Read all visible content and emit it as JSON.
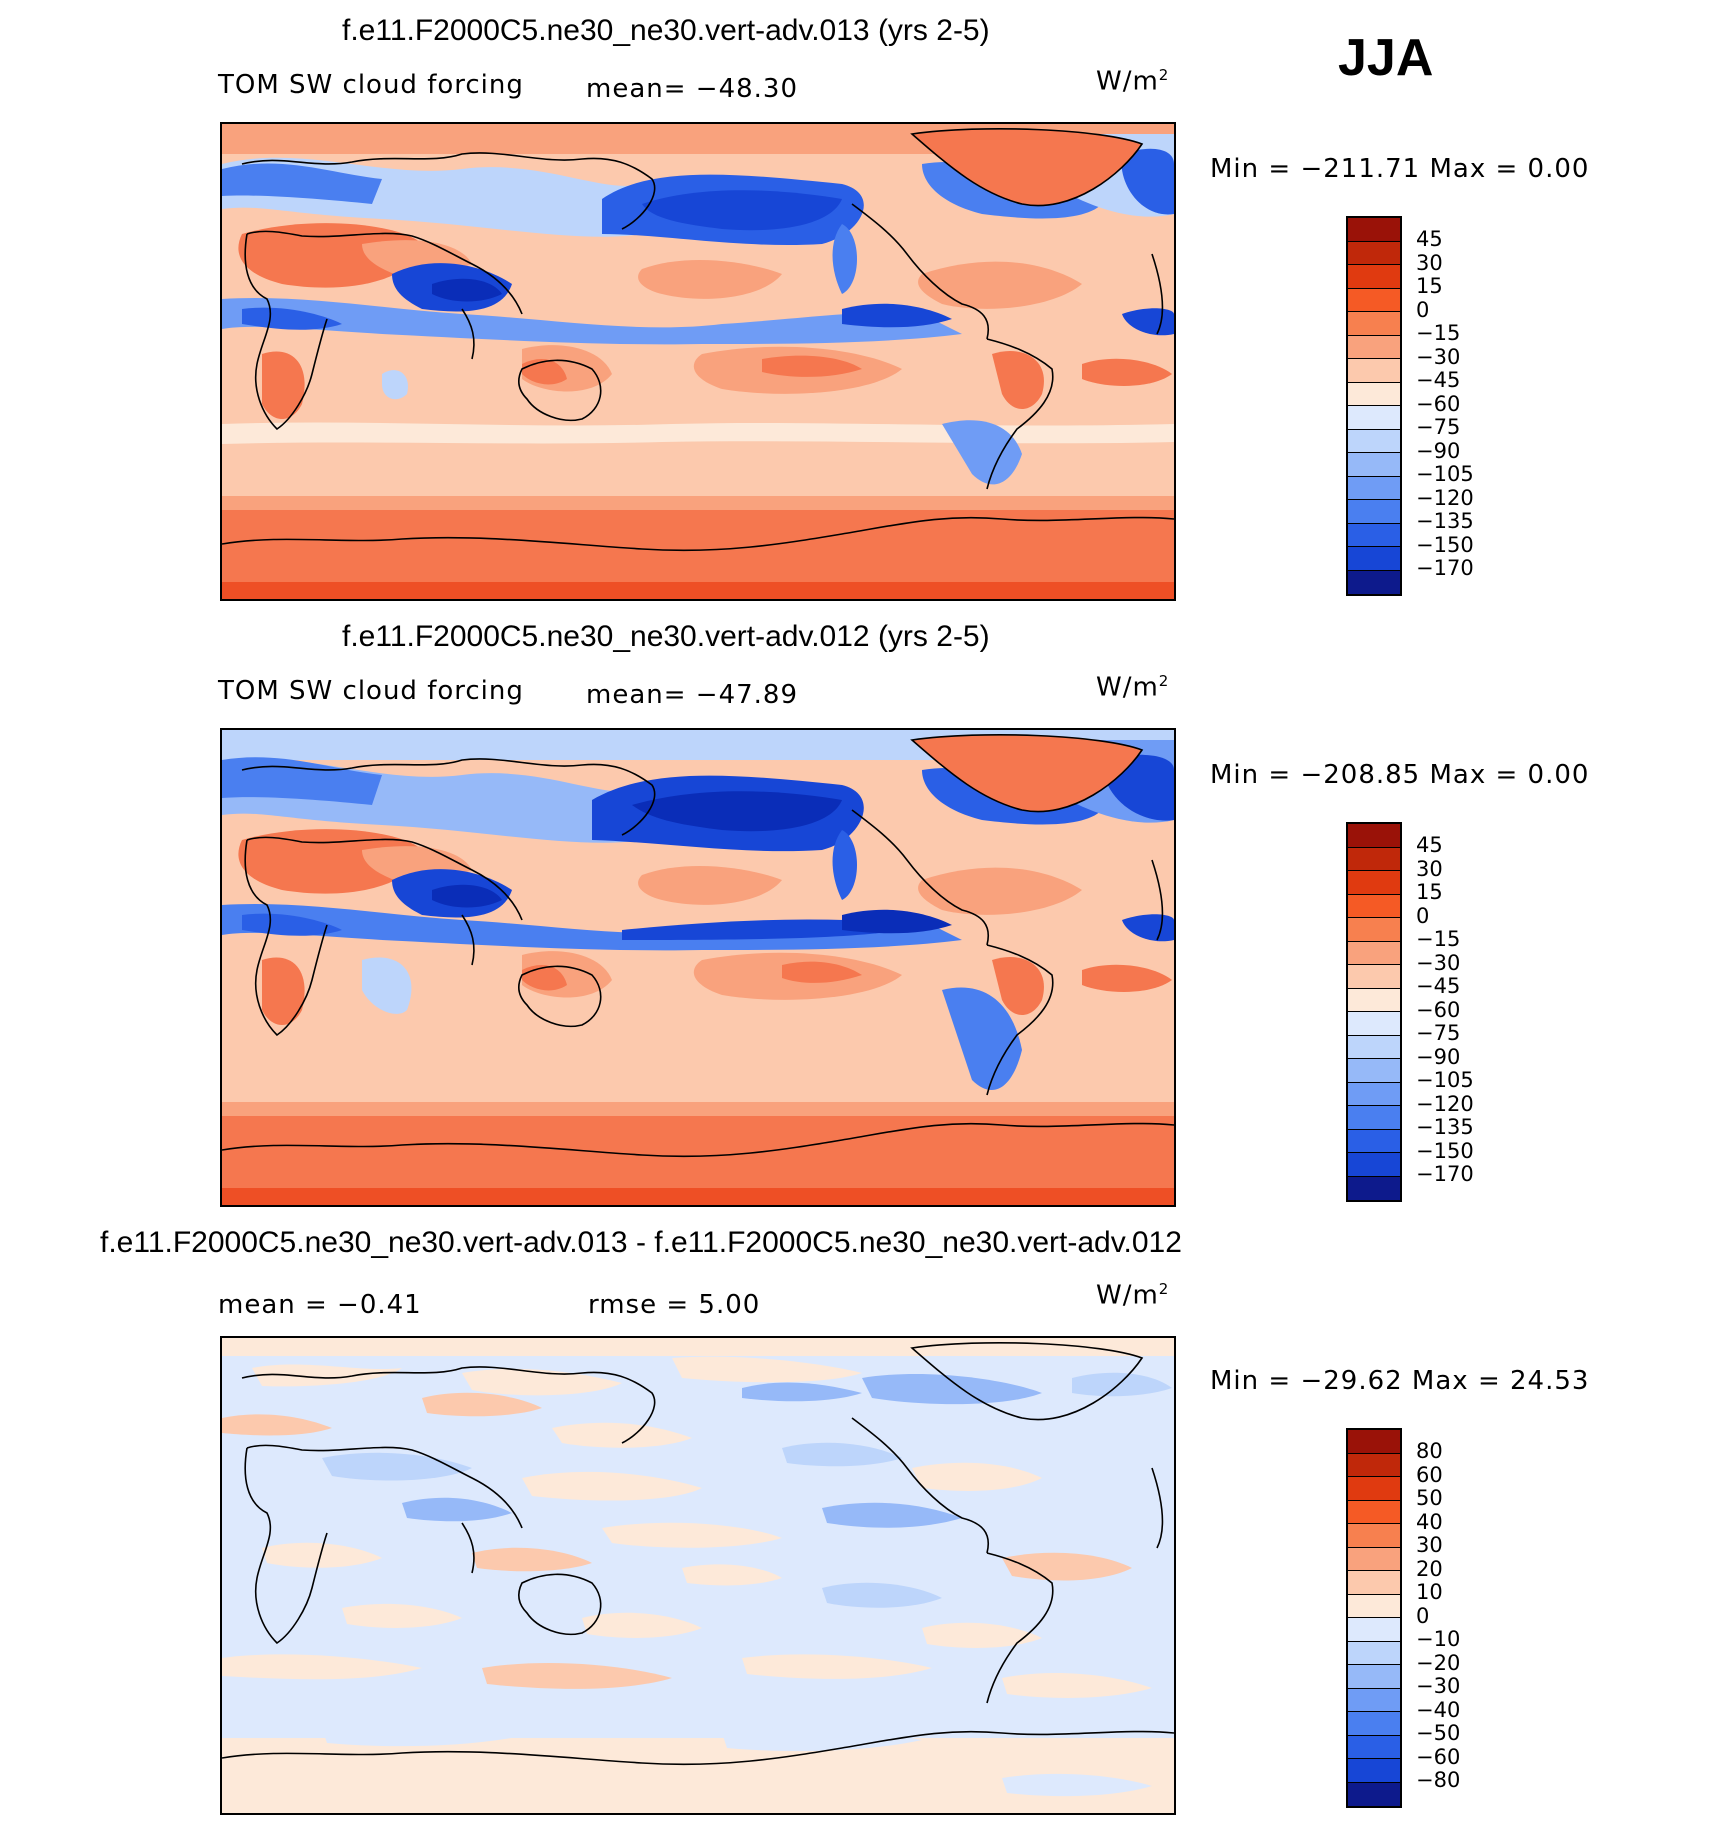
{
  "season": "JJA",
  "colors": {
    "base_scale": [
      "#0d1a8c",
      "#0a2db8",
      "#1746d6",
      "#2a5fe6",
      "#4a7ff0",
      "#6f9cf5",
      "#96b9f8",
      "#bdd5fb",
      "#dde9fd",
      "#fde9d9",
      "#fcc9ad",
      "#f9a27d",
      "#f5774f",
      "#ee4f25",
      "#d42c0c",
      "#9a1208"
    ],
    "diff_scale": [
      "#0d1a8c",
      "#0a2db8",
      "#1746d6",
      "#2a5fe6",
      "#4a7ff0",
      "#6f9cf5",
      "#96b9f8",
      "#bdd5fb",
      "#dde9fd",
      "#fde9d9",
      "#fcc9ad",
      "#f9a27d",
      "#f5774f",
      "#ee4f25",
      "#d42c0c",
      "#9a1208"
    ]
  },
  "panels": [
    {
      "title": "f.e11.F2000C5.ne30_ne30.vert-adv.013 (yrs 2-5)",
      "variable": "TOM SW cloud forcing",
      "mean_text": "mean= −48.30",
      "units": "W/m",
      "units_sup": "2",
      "minmax": "Min = −211.71 Max =    0.00",
      "colorbar_labels": [
        "45",
        "30",
        "15",
        "0",
        "−15",
        "−30",
        "−45",
        "−60",
        "−75",
        "−90",
        "−105",
        "−120",
        "−135",
        "−150",
        "−170"
      ]
    },
    {
      "title": "f.e11.F2000C5.ne30_ne30.vert-adv.012 (yrs 2-5)",
      "variable": "TOM SW cloud forcing",
      "mean_text": "mean= −47.89",
      "units": "W/m",
      "units_sup": "2",
      "minmax": "Min = −208.85 Max =    0.00",
      "colorbar_labels": [
        "45",
        "30",
        "15",
        "0",
        "−15",
        "−30",
        "−45",
        "−60",
        "−75",
        "−90",
        "−105",
        "−120",
        "−135",
        "−150",
        "−170"
      ]
    },
    {
      "title": "f.e11.F2000C5.ne30_ne30.vert-adv.013 - f.e11.F2000C5.ne30_ne30.vert-adv.012",
      "mean_text": "mean =   −0.41",
      "rmse_text": "rmse =    5.00",
      "units": "W/m",
      "units_sup": "2",
      "minmax": "Min = −29.62 Max =  24.53",
      "colorbar_labels": [
        "80",
        "60",
        "50",
        "40",
        "30",
        "20",
        "10",
        "0",
        "−10",
        "−20",
        "−30",
        "−40",
        "−50",
        "−60",
        "−80"
      ]
    }
  ]
}
